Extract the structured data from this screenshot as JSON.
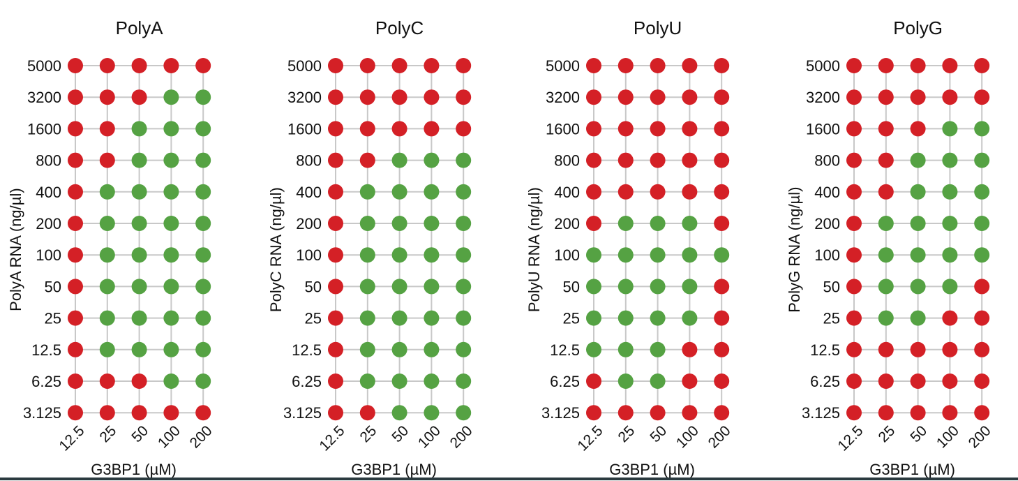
{
  "colors": {
    "not_phase_separated": "#d42026",
    "phase_separated": "#55a243",
    "grid": "#c8c8c8",
    "background": "#ffffff"
  },
  "chart_data": [
    {
      "type": "scatter",
      "title": "PolyA",
      "xlabel": "G3BP1 (µM)",
      "ylabel": "PolyA RNA (ng/µl)",
      "x_categories": [
        "12.5",
        "25",
        "50",
        "100",
        "200"
      ],
      "y_categories": [
        "5000",
        "3200",
        "1600",
        "800",
        "400",
        "200",
        "100",
        "50",
        "25",
        "12.5",
        "6.25",
        "3.125"
      ],
      "grid": true,
      "values": [
        [
          "red",
          "red",
          "red",
          "red",
          "red"
        ],
        [
          "red",
          "red",
          "red",
          "green",
          "green"
        ],
        [
          "red",
          "red",
          "green",
          "green",
          "green"
        ],
        [
          "red",
          "red",
          "green",
          "green",
          "green"
        ],
        [
          "red",
          "green",
          "green",
          "green",
          "green"
        ],
        [
          "red",
          "green",
          "green",
          "green",
          "green"
        ],
        [
          "red",
          "green",
          "green",
          "green",
          "green"
        ],
        [
          "red",
          "green",
          "green",
          "green",
          "green"
        ],
        [
          "red",
          "green",
          "green",
          "green",
          "green"
        ],
        [
          "red",
          "green",
          "green",
          "green",
          "green"
        ],
        [
          "red",
          "red",
          "red",
          "green",
          "green"
        ],
        [
          "red",
          "red",
          "red",
          "red",
          "red"
        ]
      ]
    },
    {
      "type": "scatter",
      "title": "PolyC",
      "xlabel": "G3BP1 (µM)",
      "ylabel": "PolyC RNA (ng/µl)",
      "x_categories": [
        "12.5",
        "25",
        "50",
        "100",
        "200"
      ],
      "y_categories": [
        "5000",
        "3200",
        "1600",
        "800",
        "400",
        "200",
        "100",
        "50",
        "25",
        "12.5",
        "6.25",
        "3.125"
      ],
      "grid": true,
      "values": [
        [
          "red",
          "red",
          "red",
          "red",
          "red"
        ],
        [
          "red",
          "red",
          "red",
          "red",
          "red"
        ],
        [
          "red",
          "red",
          "red",
          "red",
          "red"
        ],
        [
          "red",
          "red",
          "green",
          "green",
          "green"
        ],
        [
          "red",
          "green",
          "green",
          "green",
          "green"
        ],
        [
          "red",
          "green",
          "green",
          "green",
          "green"
        ],
        [
          "red",
          "green",
          "green",
          "green",
          "green"
        ],
        [
          "red",
          "green",
          "green",
          "green",
          "green"
        ],
        [
          "red",
          "green",
          "green",
          "green",
          "green"
        ],
        [
          "red",
          "green",
          "green",
          "green",
          "green"
        ],
        [
          "red",
          "green",
          "green",
          "green",
          "green"
        ],
        [
          "red",
          "red",
          "green",
          "green",
          "green"
        ]
      ]
    },
    {
      "type": "scatter",
      "title": "PolyU",
      "xlabel": "G3BP1 (µM)",
      "ylabel": "PolyU RNA (ng/µl)",
      "x_categories": [
        "12.5",
        "25",
        "50",
        "100",
        "200"
      ],
      "y_categories": [
        "5000",
        "3200",
        "1600",
        "800",
        "400",
        "200",
        "100",
        "50",
        "25",
        "12.5",
        "6.25",
        "3.125"
      ],
      "grid": true,
      "values": [
        [
          "red",
          "red",
          "red",
          "red",
          "red"
        ],
        [
          "red",
          "red",
          "red",
          "red",
          "red"
        ],
        [
          "red",
          "red",
          "red",
          "red",
          "red"
        ],
        [
          "red",
          "red",
          "red",
          "red",
          "red"
        ],
        [
          "red",
          "red",
          "red",
          "red",
          "red"
        ],
        [
          "red",
          "green",
          "green",
          "green",
          "red"
        ],
        [
          "green",
          "green",
          "green",
          "green",
          "green"
        ],
        [
          "green",
          "green",
          "green",
          "green",
          "red"
        ],
        [
          "green",
          "green",
          "green",
          "green",
          "red"
        ],
        [
          "green",
          "green",
          "green",
          "red",
          "red"
        ],
        [
          "red",
          "green",
          "green",
          "red",
          "red"
        ],
        [
          "red",
          "red",
          "red",
          "red",
          "red"
        ]
      ]
    },
    {
      "type": "scatter",
      "title": "PolyG",
      "xlabel": "G3BP1 (µM)",
      "ylabel": "PolyG RNA (ng/µl)",
      "x_categories": [
        "12.5",
        "25",
        "50",
        "100",
        "200"
      ],
      "y_categories": [
        "5000",
        "3200",
        "1600",
        "800",
        "400",
        "200",
        "100",
        "50",
        "25",
        "12.5",
        "6.25",
        "3.125"
      ],
      "grid": true,
      "values": [
        [
          "red",
          "red",
          "red",
          "red",
          "red"
        ],
        [
          "red",
          "red",
          "red",
          "red",
          "red"
        ],
        [
          "red",
          "red",
          "red",
          "green",
          "green"
        ],
        [
          "red",
          "red",
          "green",
          "green",
          "green"
        ],
        [
          "red",
          "red",
          "green",
          "green",
          "green"
        ],
        [
          "red",
          "green",
          "green",
          "green",
          "green"
        ],
        [
          "red",
          "green",
          "green",
          "green",
          "green"
        ],
        [
          "red",
          "green",
          "green",
          "green",
          "red"
        ],
        [
          "red",
          "green",
          "green",
          "red",
          "red"
        ],
        [
          "red",
          "red",
          "red",
          "red",
          "red"
        ],
        [
          "red",
          "red",
          "red",
          "red",
          "red"
        ],
        [
          "red",
          "red",
          "red",
          "red",
          "red"
        ]
      ]
    }
  ]
}
